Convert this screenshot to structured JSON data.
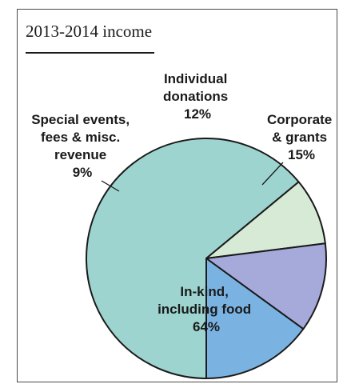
{
  "chart_data": {
    "type": "pie",
    "title": "2013-2014 income",
    "slices": [
      {
        "label_lines": [
          "In-kind,",
          "including food"
        ],
        "value": 64,
        "value_label": "64%",
        "color": "#9dd4cf"
      },
      {
        "label_lines": [
          "Special events,",
          "fees & misc.",
          "revenue"
        ],
        "value": 9,
        "value_label": "9%",
        "color": "#d7ead6"
      },
      {
        "label_lines": [
          "Individual",
          "donations"
        ],
        "value": 12,
        "value_label": "12%",
        "color": "#a6aadb"
      },
      {
        "label_lines": [
          "Corporate",
          "& grants"
        ],
        "value": 15,
        "value_label": "15%",
        "color": "#7ab3e2"
      }
    ]
  }
}
